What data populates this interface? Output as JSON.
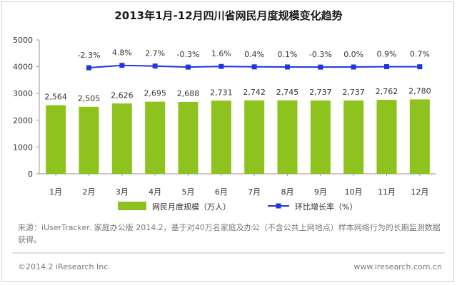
{
  "chart_data": {
    "type": "bar+line",
    "title": "2013年1月-12月四川省网民月度规模变化趋势",
    "categories": [
      "1月",
      "2月",
      "3月",
      "4月",
      "5月",
      "6月",
      "7月",
      "8月",
      "9月",
      "10月",
      "11月",
      "12月"
    ],
    "series": [
      {
        "name": "网民月度规模（万人）",
        "type": "bar",
        "color": "#8dc21f",
        "values": [
          2564,
          2505,
          2626,
          2695,
          2688,
          2731,
          2742,
          2745,
          2737,
          2737,
          2762,
          2780
        ],
        "labels": [
          "2,564",
          "2,505",
          "2,626",
          "2,695",
          "2,688",
          "2,731",
          "2,742",
          "2,745",
          "2,737",
          "2,737",
          "2,762",
          "2,780"
        ]
      },
      {
        "name": "环比增长率（%）",
        "type": "line",
        "color": "#1f35e0",
        "values": [
          null,
          -2.3,
          4.8,
          2.7,
          -0.3,
          1.6,
          0.4,
          0.1,
          -0.3,
          0.0,
          0.9,
          0.7
        ],
        "labels": [
          "",
          "-2.3%",
          "4.8%",
          "2.7%",
          "-0.3%",
          "1.6%",
          "0.4%",
          "0.1%",
          "-0.3%",
          "0.0%",
          "0.9%",
          "0.7%"
        ]
      }
    ],
    "ylim": [
      0,
      5000
    ],
    "yticks": [
      "0",
      "1000",
      "2000",
      "3000",
      "4000",
      "5000"
    ],
    "legend_position": "bottom"
  },
  "source_note": "来源：iUserTracker. 家庭办公版 2014.2，基于对40万名家庭及办公（不含公共上网地点）样本网络行为的长期监测数据获得。",
  "copyright": "©2014.2 iResearch Inc.",
  "website": "www.iresearch.com.cn"
}
